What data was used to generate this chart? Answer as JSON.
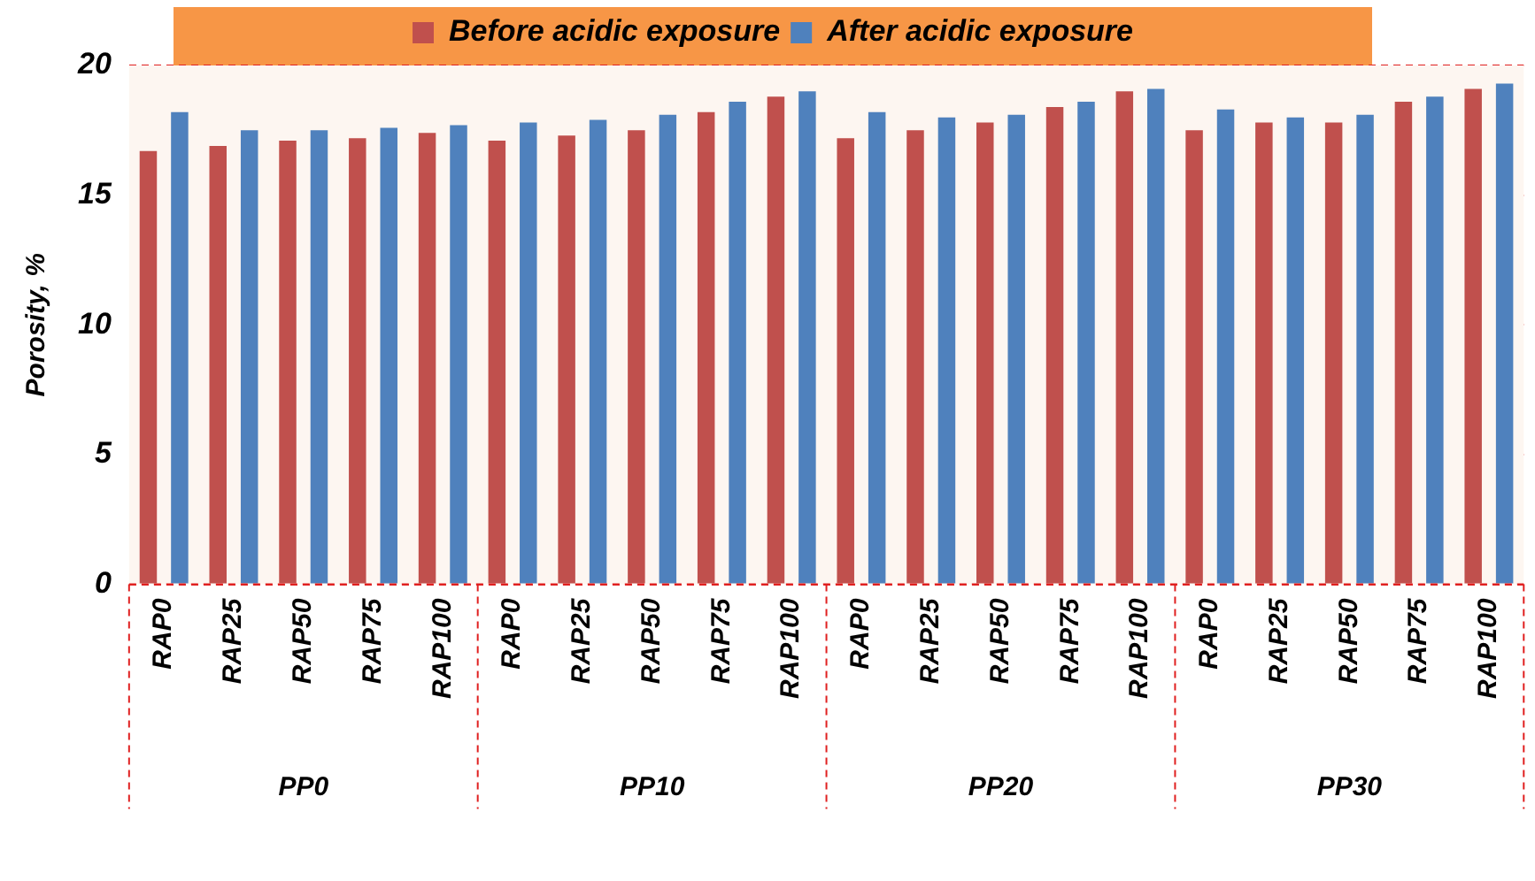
{
  "chart_data": {
    "type": "bar",
    "ylabel": "Porosity, %",
    "categories": [
      "RAP0",
      "RAP25",
      "RAP50",
      "RAP75",
      "RAP100",
      "RAP0",
      "RAP25",
      "RAP50",
      "RAP75",
      "RAP100",
      "RAP0",
      "RAP25",
      "RAP50",
      "RAP75",
      "RAP100",
      "RAP0",
      "RAP25",
      "RAP50",
      "RAP75",
      "RAP100"
    ],
    "series": [
      {
        "name": "Before acidic exposure",
        "color": "#c0504d",
        "values": [
          16.7,
          16.9,
          17.1,
          17.2,
          17.4,
          17.1,
          17.3,
          17.5,
          18.2,
          18.8,
          17.2,
          17.5,
          17.8,
          18.4,
          19.0,
          17.5,
          17.8,
          17.8,
          18.6,
          19.1
        ]
      },
      {
        "name": "After acidic exposure",
        "color": "#4f81bd",
        "values": [
          18.2,
          17.5,
          17.5,
          17.6,
          17.7,
          17.8,
          17.9,
          18.1,
          18.6,
          19.0,
          18.2,
          18.0,
          18.1,
          18.6,
          19.1,
          18.3,
          18.0,
          18.1,
          18.8,
          19.3
        ]
      }
    ],
    "annotations": [
      "PP0",
      "PP10",
      "PP20",
      "PP30"
    ],
    "ylim": [
      0,
      20
    ],
    "yticks": [
      0,
      5,
      10,
      15,
      20
    ],
    "grid": "y",
    "legend": "top"
  }
}
